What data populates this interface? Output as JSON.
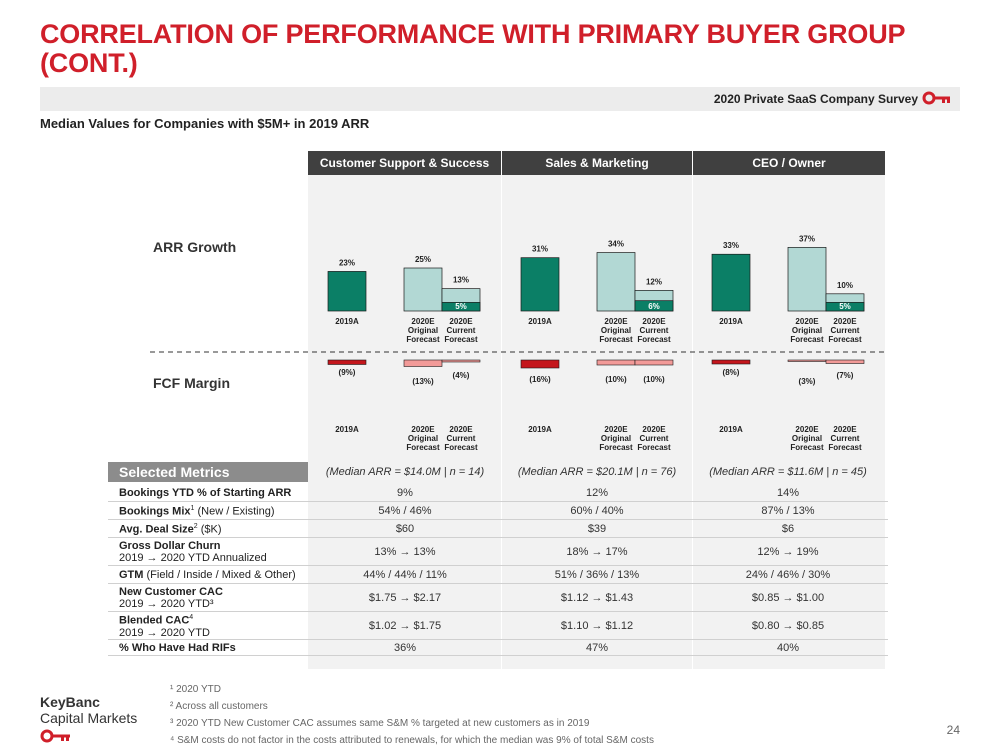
{
  "title": "CORRELATION OF PERFORMANCE WITH PRIMARY BUYER GROUP (CONT.)",
  "survey_label": "2020 Private SaaS Company Survey",
  "subtitle": "Median Values for Companies with $5M+ in 2019 ARR",
  "row_labels": {
    "arr_growth": "ARR Growth",
    "fcf_margin": "FCF Margin"
  },
  "category_labels": [
    "2019A",
    "2020E Original Forecast",
    "2020E Current Forecast"
  ],
  "colors": {
    "brand_red": "#d01f2a",
    "arr_2019": "#0b7f66",
    "arr_original": "#b2d8d4",
    "arr_current": "#0b7f66",
    "fcf_2019": "#c4161c",
    "fcf_forecast": "#f29a98",
    "header_dark": "#404040"
  },
  "chart_data": [
    {
      "type": "bar",
      "group": "Customer Support & Success",
      "categories": [
        "2019A",
        "2020E Original Forecast",
        "2020E Current Forecast"
      ],
      "arr_growth": {
        "values": [
          23,
          25,
          13
        ],
        "labels": [
          "23%",
          "25%",
          "13%"
        ],
        "inner_value": 5,
        "inner_label": "5%"
      },
      "fcf_margin": {
        "values": [
          -9,
          -13,
          -4
        ],
        "labels": [
          "(9%)",
          "(13%)",
          "(4%)"
        ]
      }
    },
    {
      "type": "bar",
      "group": "Sales & Marketing",
      "categories": [
        "2019A",
        "2020E Original Forecast",
        "2020E Current Forecast"
      ],
      "arr_growth": {
        "values": [
          31,
          34,
          12
        ],
        "labels": [
          "31%",
          "34%",
          "12%"
        ],
        "inner_value": 6,
        "inner_label": "6%"
      },
      "fcf_margin": {
        "values": [
          -16,
          -10,
          -10
        ],
        "labels": [
          "(16%)",
          "(10%)",
          "(10%)"
        ]
      }
    },
    {
      "type": "bar",
      "group": "CEO / Owner",
      "categories": [
        "2019A",
        "2020E Original Forecast",
        "2020E Current Forecast"
      ],
      "arr_growth": {
        "values": [
          33,
          37,
          10
        ],
        "labels": [
          "33%",
          "37%",
          "10%"
        ],
        "inner_value": 5,
        "inner_label": "5%"
      },
      "fcf_margin": {
        "values": [
          -8,
          -3,
          -7
        ],
        "labels": [
          "(8%)",
          "(3%)",
          "(7%)"
        ]
      }
    }
  ],
  "metrics": {
    "header": "Selected Metrics",
    "median_notes": [
      "(Median ARR = $14.0M | n = 14)",
      "(Median ARR = $20.1M | n = 76)",
      "(Median ARR = $11.6M | n = 45)"
    ],
    "rows": [
      {
        "label": "Bookings YTD % of Starting ARR",
        "label_sup": "",
        "label_suffix": "",
        "sub": "",
        "values": [
          "9%",
          "12%",
          "14%"
        ]
      },
      {
        "label": "Bookings Mix",
        "label_sup": "1",
        "label_suffix": " (New / Existing)",
        "sub": "",
        "values": [
          "54% / 46%",
          "60% / 40%",
          "87% / 13%"
        ]
      },
      {
        "label": "Avg. Deal Size",
        "label_sup": "2",
        "label_suffix": " ($K)",
        "sub": "",
        "values": [
          "$60",
          "$39",
          "$6"
        ]
      },
      {
        "label": "Gross Dollar Churn",
        "label_sup": "",
        "label_suffix": "",
        "sub": "2019 → 2020 YTD Annualized",
        "values": [
          "13% → 13%",
          "18% → 17%",
          "12% → 19%"
        ]
      },
      {
        "label": "GTM",
        "label_sup": "",
        "label_suffix": " (Field / Inside / Mixed & Other)",
        "sub": "",
        "values": [
          "44% / 44% / 11%",
          "51% / 36% / 13%",
          "24% / 46% / 30%"
        ]
      },
      {
        "label": "New Customer CAC",
        "label_sup": "",
        "label_suffix": "",
        "sub": "2019 → 2020 YTD³",
        "values": [
          "$1.75 → $2.17",
          "$1.12 → $1.43",
          "$0.85 → $1.00"
        ]
      },
      {
        "label": "Blended CAC",
        "label_sup": "4",
        "label_suffix": "",
        "sub": "2019 → 2020 YTD",
        "values": [
          "$1.02 → $1.75",
          "$1.10 → $1.12",
          "$0.80 → $0.85"
        ]
      },
      {
        "label": "% Who Have Had RIFs",
        "label_sup": "",
        "label_suffix": "",
        "sub": "",
        "values": [
          "36%",
          "47%",
          "40%"
        ]
      }
    ]
  },
  "footnotes": [
    "¹ 2020 YTD",
    "² Across all customers",
    "³ 2020 YTD New Customer CAC assumes same S&M % targeted at new customers as in 2019",
    "⁴ S&M costs do not factor in the costs attributed to renewals, for which the median was 9% of total S&M costs"
  ],
  "logo": {
    "line1": "KeyBanc",
    "line2": "Capital Markets"
  },
  "page_number": "24"
}
